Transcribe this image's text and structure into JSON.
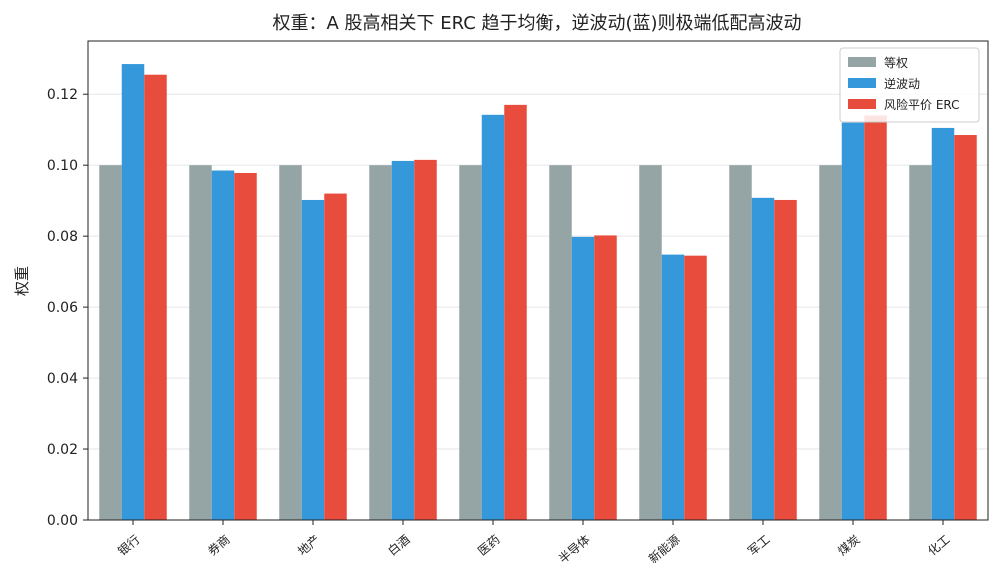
{
  "chart_data": {
    "type": "bar",
    "title": "权重：A 股高相关下 ERC 趋于均衡，逆波动(蓝)则极端低配高波动",
    "xlabel": "",
    "ylabel": "权重",
    "categories": [
      "银行",
      "券商",
      "地产",
      "白酒",
      "医药",
      "半导体",
      "新能源",
      "军工",
      "煤炭",
      "化工"
    ],
    "series": [
      {
        "name": "等权",
        "color": "#95a5a6",
        "values": [
          0.1,
          0.1,
          0.1,
          0.1,
          0.1,
          0.1,
          0.1,
          0.1,
          0.1,
          0.1
        ]
      },
      {
        "name": "逆波动",
        "color": "#3498db",
        "values": [
          0.1285,
          0.0985,
          0.0902,
          0.1012,
          0.1142,
          0.0798,
          0.0748,
          0.0908,
          0.112,
          0.1105
        ]
      },
      {
        "name": "风险平价 ERC",
        "color": "#e74c3c",
        "values": [
          0.1255,
          0.0978,
          0.092,
          0.1015,
          0.117,
          0.0802,
          0.0745,
          0.0902,
          0.114,
          0.1085
        ]
      }
    ],
    "ylim": [
      0,
      0.135
    ],
    "yticks": [
      0.0,
      0.02,
      0.04,
      0.06,
      0.08,
      0.1,
      0.12
    ],
    "ytick_labels": [
      "0.00",
      "0.02",
      "0.04",
      "0.06",
      "0.08",
      "0.10",
      "0.12"
    ],
    "grid": true,
    "legend_position": "top-right"
  }
}
